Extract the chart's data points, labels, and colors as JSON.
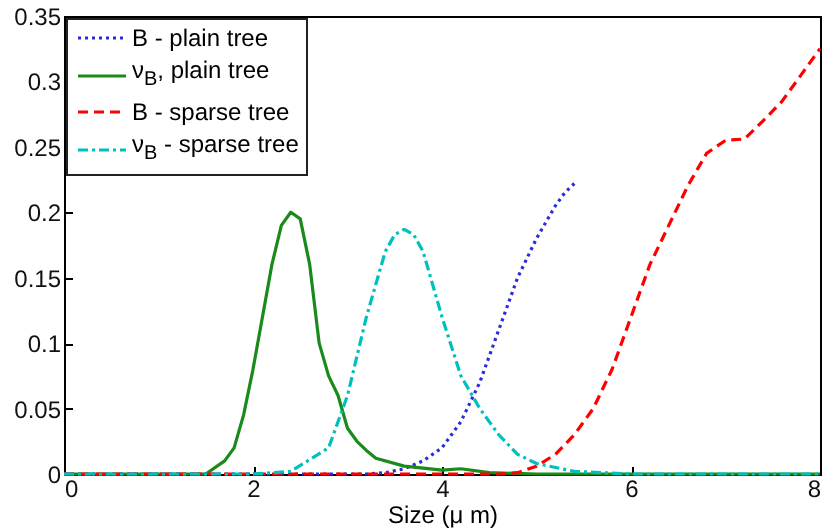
{
  "chart_data": {
    "type": "line",
    "xlabel": "Size (μ m)",
    "xlim": [
      0,
      8
    ],
    "xticks": [
      0,
      2,
      4,
      6,
      8
    ],
    "ylim": [
      0,
      0.35
    ],
    "yticks": [
      0,
      0.05,
      0.1,
      0.15,
      0.2,
      0.25,
      0.3,
      0.35
    ],
    "legend": "top left",
    "grid": false,
    "series": [
      {
        "name": "B - plain tree",
        "color": "#2b2bd9",
        "line_style": "dotted",
        "x": [
          0,
          3.2,
          3.4,
          3.6,
          3.8,
          4.0,
          4.2,
          4.4,
          4.6,
          4.8,
          5.0,
          5.2,
          5.3,
          5.4
        ],
        "values": [
          0,
          0,
          0.001,
          0.004,
          0.01,
          0.02,
          0.04,
          0.07,
          0.11,
          0.15,
          0.18,
          0.205,
          0.215,
          0.222
        ]
      },
      {
        "name": "ν$_{B}$, plain tree",
        "color": "#1a8a1a",
        "line_style": "solid",
        "x": [
          0,
          1.5,
          1.7,
          1.8,
          1.9,
          2.0,
          2.1,
          2.2,
          2.3,
          2.4,
          2.5,
          2.6,
          2.7,
          2.8,
          2.9,
          3.0,
          3.1,
          3.2,
          3.3,
          3.6,
          4.0,
          4.2,
          4.5,
          5.0,
          8
        ],
        "values": [
          0,
          0,
          0.01,
          0.02,
          0.045,
          0.08,
          0.12,
          0.16,
          0.19,
          0.2,
          0.195,
          0.16,
          0.1,
          0.075,
          0.06,
          0.035,
          0.025,
          0.018,
          0.012,
          0.006,
          0.003,
          0.004,
          0.001,
          0,
          0
        ]
      },
      {
        "name": "B - sparse tree",
        "color": "#ff0000",
        "line_style": "dashed",
        "x": [
          0,
          4.6,
          4.8,
          5.0,
          5.2,
          5.4,
          5.6,
          5.8,
          6.0,
          6.2,
          6.4,
          6.6,
          6.8,
          7.0,
          7.2,
          7.4,
          7.6,
          7.8,
          8.0
        ],
        "values": [
          0,
          0,
          0.001,
          0.006,
          0.015,
          0.03,
          0.05,
          0.08,
          0.12,
          0.16,
          0.19,
          0.22,
          0.245,
          0.255,
          0.256,
          0.27,
          0.285,
          0.305,
          0.325
        ]
      },
      {
        "name": "ν$_{B}$ - sparse tree",
        "color": "#00bfbf",
        "line_style": "dashdot",
        "x": [
          0,
          2.0,
          2.4,
          2.8,
          3.0,
          3.2,
          3.4,
          3.5,
          3.6,
          3.7,
          3.8,
          4.0,
          4.2,
          4.4,
          4.6,
          4.8,
          5.0,
          5.4,
          6.0,
          8.0
        ],
        "values": [
          0,
          0,
          0.002,
          0.02,
          0.06,
          0.12,
          0.17,
          0.183,
          0.187,
          0.183,
          0.17,
          0.12,
          0.075,
          0.05,
          0.03,
          0.015,
          0.008,
          0.002,
          0,
          0
        ]
      }
    ]
  }
}
